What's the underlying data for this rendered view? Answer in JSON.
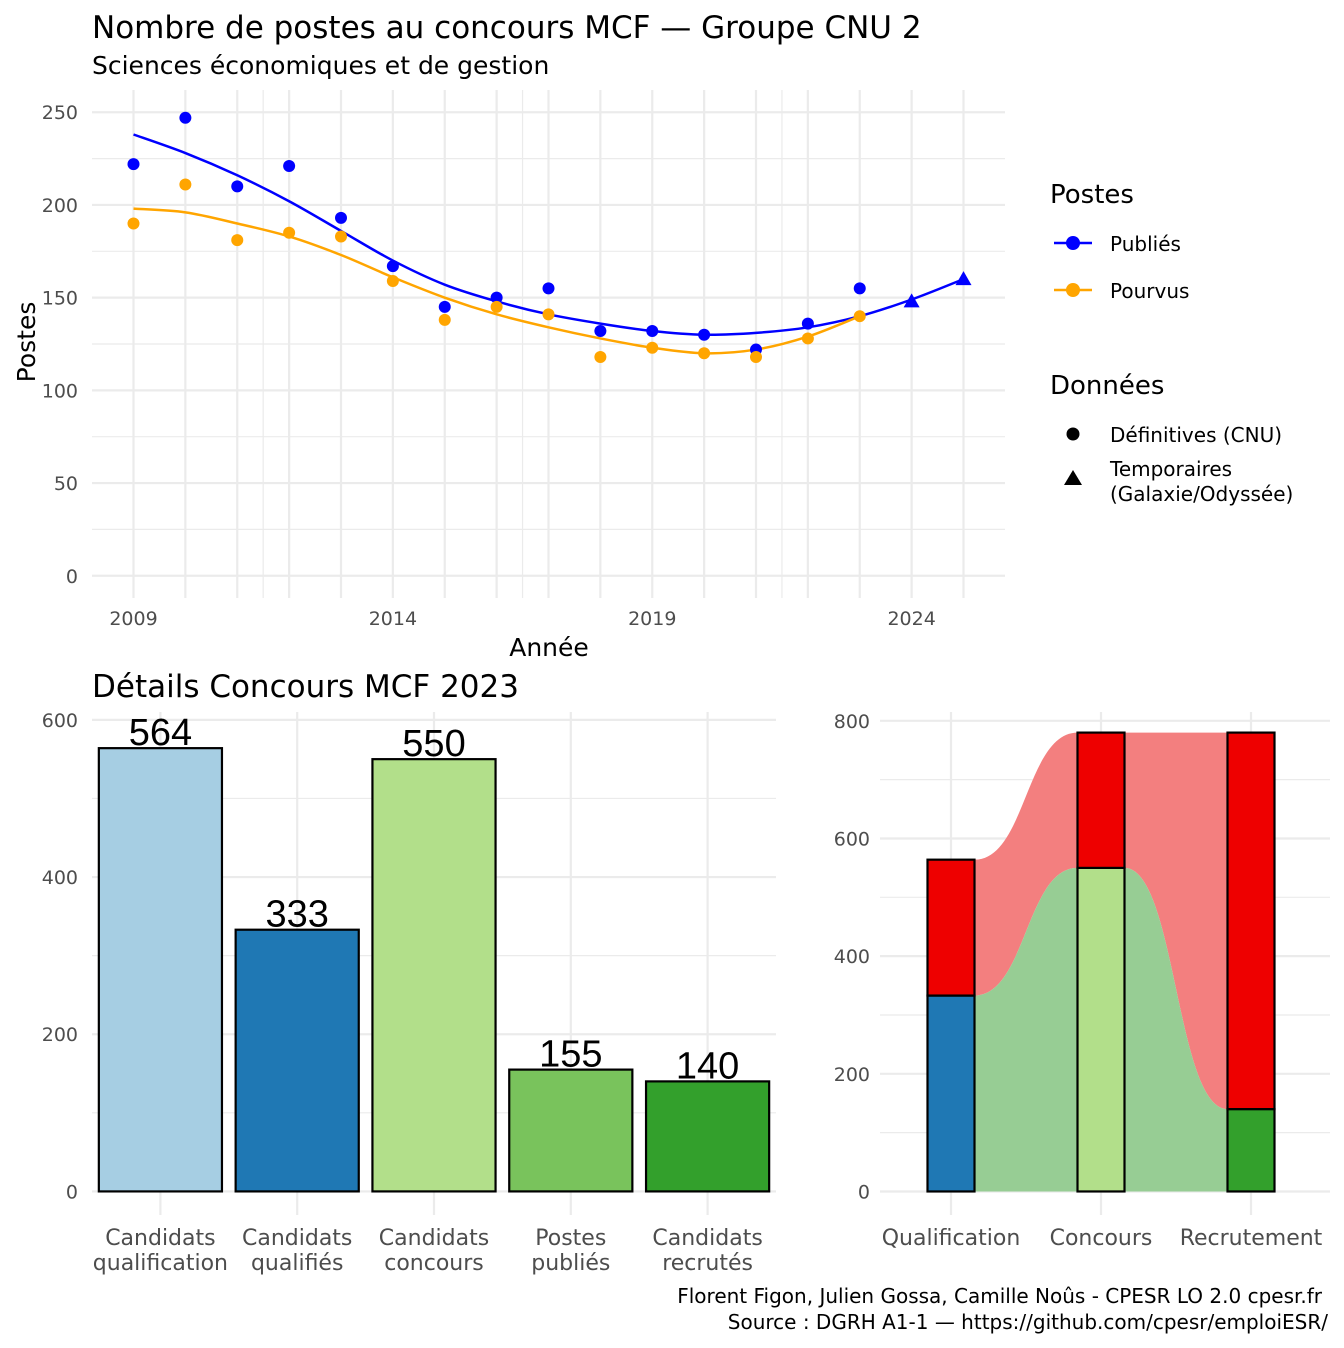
{
  "header": {
    "title": "Nombre de postes au concours MCF —  Groupe CNU 2",
    "subtitle": "Sciences économiques et de gestion"
  },
  "chart_data": [
    {
      "type": "scatter",
      "x_label": "Année",
      "y_label": "Postes",
      "x_ticks": [
        "2009",
        "2014",
        "2019",
        "2024"
      ],
      "y_ticks": [
        "0",
        "50",
        "100",
        "150",
        "200",
        "250"
      ],
      "xlim": [
        2008.2,
        2025.8
      ],
      "ylim": [
        -12,
        262
      ],
      "grid": true,
      "legend_placement": "right",
      "legend_postes_title": "Postes",
      "legend_donnees_title": "Données",
      "legend_donnees_items": [
        "Définitives (CNU)",
        "Temporaires\n(Galaxie/Odyssée)"
      ],
      "smooth_lines": true,
      "series": [
        {
          "name": "Publiés",
          "color": "#0000ff",
          "points": [
            {
              "x": 2009,
              "y": 222,
              "kind": "definitive"
            },
            {
              "x": 2010,
              "y": 247,
              "kind": "definitive"
            },
            {
              "x": 2011,
              "y": 210,
              "kind": "definitive"
            },
            {
              "x": 2012,
              "y": 221,
              "kind": "definitive"
            },
            {
              "x": 2013,
              "y": 193,
              "kind": "definitive"
            },
            {
              "x": 2014,
              "y": 167,
              "kind": "definitive"
            },
            {
              "x": 2015,
              "y": 145,
              "kind": "definitive"
            },
            {
              "x": 2016,
              "y": 150,
              "kind": "definitive"
            },
            {
              "x": 2017,
              "y": 155,
              "kind": "definitive"
            },
            {
              "x": 2018,
              "y": 132,
              "kind": "definitive"
            },
            {
              "x": 2019,
              "y": 132,
              "kind": "definitive"
            },
            {
              "x": 2020,
              "y": 130,
              "kind": "definitive"
            },
            {
              "x": 2021,
              "y": 122,
              "kind": "definitive"
            },
            {
              "x": 2022,
              "y": 136,
              "kind": "definitive"
            },
            {
              "x": 2023,
              "y": 155,
              "kind": "definitive"
            },
            {
              "x": 2024,
              "y": 148,
              "kind": "temporary"
            },
            {
              "x": 2025,
              "y": 160,
              "kind": "temporary"
            }
          ],
          "smooth": [
            [
              2009,
              238
            ],
            [
              2010,
              228
            ],
            [
              2011,
              216
            ],
            [
              2012,
              202
            ],
            [
              2013,
              186
            ],
            [
              2014,
              170
            ],
            [
              2015,
              157
            ],
            [
              2016,
              148
            ],
            [
              2017,
              141
            ],
            [
              2018,
              136
            ],
            [
              2019,
              132
            ],
            [
              2020,
              130
            ],
            [
              2021,
              131
            ],
            [
              2022,
              134
            ],
            [
              2023,
              140
            ],
            [
              2024,
              149
            ],
            [
              2025,
              160
            ]
          ]
        },
        {
          "name": "Pourvus",
          "color": "#ffa500",
          "points": [
            {
              "x": 2009,
              "y": 190,
              "kind": "definitive"
            },
            {
              "x": 2010,
              "y": 211,
              "kind": "definitive"
            },
            {
              "x": 2011,
              "y": 181,
              "kind": "definitive"
            },
            {
              "x": 2012,
              "y": 185,
              "kind": "definitive"
            },
            {
              "x": 2013,
              "y": 183,
              "kind": "definitive"
            },
            {
              "x": 2014,
              "y": 159,
              "kind": "definitive"
            },
            {
              "x": 2015,
              "y": 138,
              "kind": "definitive"
            },
            {
              "x": 2016,
              "y": 145,
              "kind": "definitive"
            },
            {
              "x": 2017,
              "y": 141,
              "kind": "definitive"
            },
            {
              "x": 2018,
              "y": 118,
              "kind": "definitive"
            },
            {
              "x": 2019,
              "y": 123,
              "kind": "definitive"
            },
            {
              "x": 2020,
              "y": 120,
              "kind": "definitive"
            },
            {
              "x": 2021,
              "y": 118,
              "kind": "definitive"
            },
            {
              "x": 2022,
              "y": 128,
              "kind": "definitive"
            },
            {
              "x": 2023,
              "y": 140,
              "kind": "definitive"
            }
          ],
          "smooth": [
            [
              2009,
              198
            ],
            [
              2010,
              196
            ],
            [
              2011,
              190
            ],
            [
              2012,
              183
            ],
            [
              2013,
              173
            ],
            [
              2014,
              161
            ],
            [
              2015,
              150
            ],
            [
              2016,
              141
            ],
            [
              2017,
              134
            ],
            [
              2018,
              128
            ],
            [
              2019,
              123
            ],
            [
              2020,
              120
            ],
            [
              2021,
              122
            ],
            [
              2022,
              129
            ],
            [
              2023,
              140
            ]
          ]
        }
      ]
    },
    {
      "type": "bar",
      "title": "Détails Concours MCF 2023",
      "categories": [
        "Candidats\nqualification",
        "Candidats\nqualifiés",
        "Candidats\nconcours",
        "Postes\npubliés",
        "Candidats\nrecrutés"
      ],
      "values": [
        564,
        333,
        550,
        155,
        140
      ],
      "colors": [
        "#a6cee3",
        "#1f78b4",
        "#b2df8a",
        "#79c35c",
        "#33a02c"
      ],
      "y_ticks": [
        "0",
        "200",
        "400",
        "600"
      ],
      "ylim": [
        -30,
        610
      ],
      "grid": true
    },
    {
      "type": "bar",
      "subtype": "stacked-alluvial",
      "categories": [
        "Qualification",
        "Concours",
        "Recrutement"
      ],
      "y_ticks": [
        "0",
        "200",
        "400",
        "600",
        "800"
      ],
      "ylim": [
        -40,
        815
      ],
      "grid": true,
      "stacks": [
        {
          "category": "Qualification",
          "segments": [
            {
              "value": 333,
              "color": "#1f78b4"
            },
            {
              "value": 231,
              "color": "#ee0000"
            }
          ]
        },
        {
          "category": "Concours",
          "segments": [
            {
              "value": 550,
              "color": "#b2df8a"
            },
            {
              "value": 230,
              "color": "#ee0000"
            }
          ]
        },
        {
          "category": "Recrutement",
          "segments": [
            {
              "value": 140,
              "color": "#33a02c"
            },
            {
              "value": 640,
              "color": "#ee0000"
            }
          ]
        }
      ],
      "flow_colors": {
        "retained": "#97cd94",
        "lost": "#f37f7f"
      }
    }
  ],
  "caption": {
    "line1": "Florent Figon, Julien Gossa, Camille Noûs - CPESR LO 2.0 cpesr.fr",
    "line2": "Source : DGRH A1-1 — https://github.com/cpesr/emploiESR/"
  }
}
